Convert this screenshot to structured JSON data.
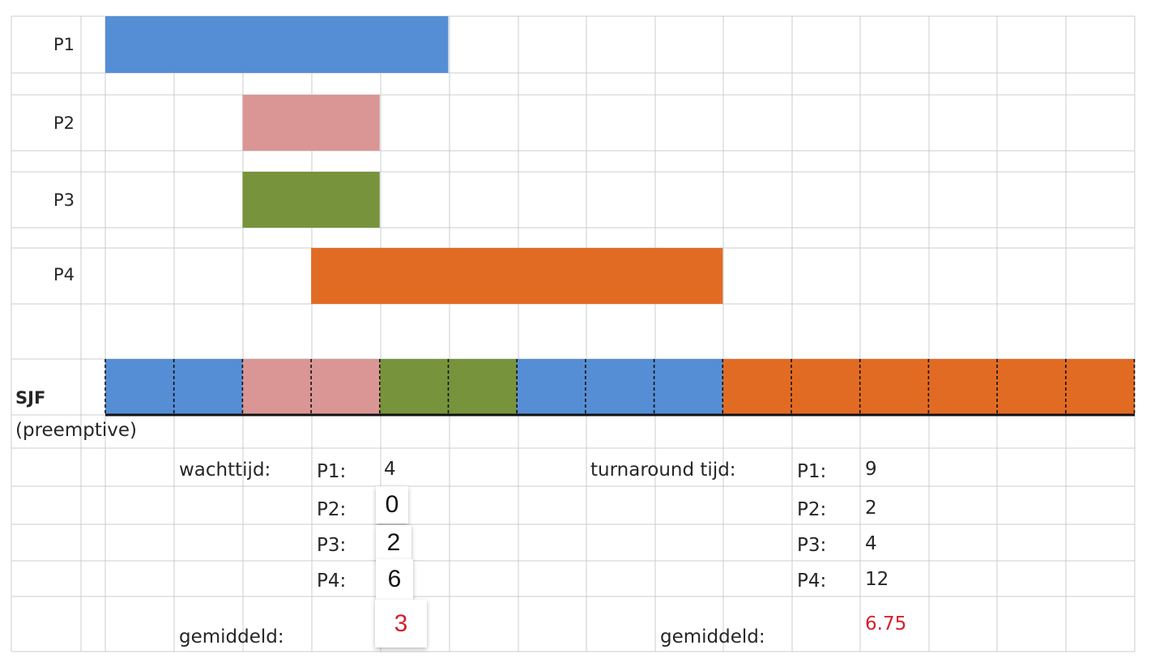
{
  "chart_data": {
    "type": "gantt",
    "title": "",
    "algorithm_label": "SJF",
    "algorithm_sublabel": "(preemptive)",
    "time_axis": {
      "min": -1,
      "max": 15,
      "unit": "time unit per grid column"
    },
    "processes": [
      {
        "name": "P1",
        "arrival": 0,
        "burst": 5,
        "color": "#558ed5"
      },
      {
        "name": "P2",
        "arrival": 2,
        "burst": 2,
        "color": "#d99694"
      },
      {
        "name": "P3",
        "arrival": 2,
        "burst": 2,
        "color": "#77933c"
      },
      {
        "name": "P4",
        "arrival": 3,
        "burst": 6,
        "color": "#e26b24"
      }
    ],
    "schedule": [
      {
        "process": "P1",
        "start": 0,
        "end": 2
      },
      {
        "process": "P2",
        "start": 2,
        "end": 4
      },
      {
        "process": "P3",
        "start": 4,
        "end": 6
      },
      {
        "process": "P1",
        "start": 6,
        "end": 9
      },
      {
        "process": "P4",
        "start": 9,
        "end": 15
      }
    ]
  },
  "waiting": {
    "label": "wachttijd:",
    "rows": [
      {
        "process": "P1:",
        "value": "4"
      },
      {
        "process": "P2:",
        "value": "0"
      },
      {
        "process": "P3:",
        "value": "2"
      },
      {
        "process": "P4:",
        "value": "6"
      }
    ],
    "average_label": "gemiddeld:",
    "average_value": "3"
  },
  "turnaround": {
    "label": "turnaround tijd:",
    "rows": [
      {
        "process": "P1:",
        "value": "9"
      },
      {
        "process": "P2:",
        "value": "2"
      },
      {
        "process": "P3:",
        "value": "4"
      },
      {
        "process": "P4:",
        "value": "12"
      }
    ],
    "average_label": "gemiddeld:",
    "average_value": "6.75"
  },
  "colors": {
    "grid": "#c8ccd2",
    "highlight_value": "#d3212c"
  }
}
